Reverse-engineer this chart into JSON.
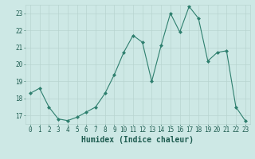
{
  "x": [
    0,
    1,
    2,
    3,
    4,
    5,
    6,
    7,
    8,
    9,
    10,
    11,
    12,
    13,
    14,
    15,
    16,
    17,
    18,
    19,
    20,
    21,
    22,
    23
  ],
  "y": [
    18.3,
    18.6,
    17.5,
    16.8,
    16.7,
    16.9,
    17.2,
    17.5,
    18.3,
    19.4,
    20.7,
    21.7,
    21.3,
    19.0,
    21.1,
    23.0,
    21.9,
    23.4,
    22.7,
    20.2,
    20.7,
    20.8,
    17.5,
    16.7
  ],
  "line_color": "#2e7f6e",
  "marker": "D",
  "marker_size": 2,
  "bg_color": "#cde8e5",
  "grid_color": "#b8d4d0",
  "xlabel": "Humidex (Indice chaleur)",
  "xlim": [
    -0.5,
    23.5
  ],
  "ylim": [
    16.5,
    23.5
  ],
  "yticks": [
    17,
    18,
    19,
    20,
    21,
    22,
    23
  ],
  "xticks": [
    0,
    1,
    2,
    3,
    4,
    5,
    6,
    7,
    8,
    9,
    10,
    11,
    12,
    13,
    14,
    15,
    16,
    17,
    18,
    19,
    20,
    21,
    22,
    23
  ],
  "tick_color": "#2e6e60",
  "label_color": "#1e5c50",
  "font_size": 5.5,
  "xlabel_fontsize": 7.0,
  "linewidth": 0.8
}
